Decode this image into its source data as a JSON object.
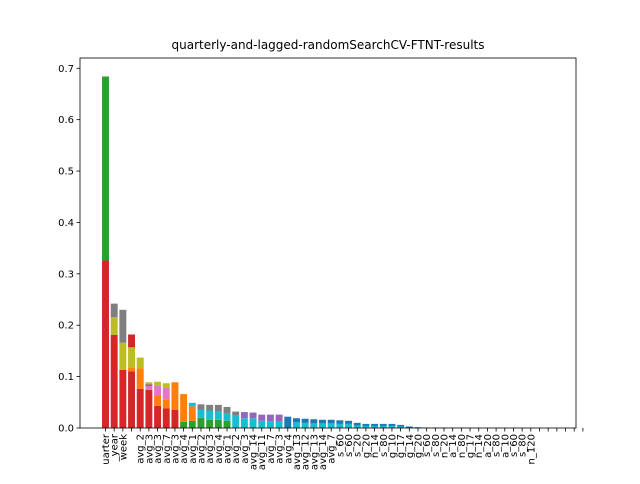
{
  "chart_data": {
    "type": "bar",
    "stacked": true,
    "title": "quarterly-and-lagged-randomSearchCV-FTNT-results",
    "xlabel": "",
    "ylabel": "",
    "ylim": [
      0,
      0.72
    ],
    "yticks": [
      0.0,
      0.1,
      0.2,
      0.3,
      0.4,
      0.5,
      0.6,
      0.7
    ],
    "ytick_labels": [
      "0.0",
      "0.1",
      "0.2",
      "0.3",
      "0.4",
      "0.5",
      "0.6",
      "0.7"
    ],
    "grid": false,
    "categories": [
      "uarter",
      "_year",
      "week",
      "",
      "avg_2",
      "avg_3",
      "avg_3",
      "avg_7",
      "avg_3",
      "avg_4",
      "avg_1",
      "avg_2",
      "avg_3",
      "avg_4",
      "avg_1",
      "avg_2",
      "avg_3",
      "avg_14",
      "avg_11",
      "avg_7",
      "avg_3",
      "avg_4",
      "avg_13",
      "avg_12",
      "avg_13",
      "avg_14",
      "avg_7",
      "s_60",
      "s_60",
      "s_20",
      "g_20",
      "n_14",
      "s_80",
      "g_10",
      "g_17",
      "g_14",
      "g_20",
      "s_60",
      "s_80",
      "n_20",
      "a_14",
      "n_80",
      "g_17",
      "n_14",
      "a_20",
      "s_80",
      "a_10",
      "s_60",
      "s_80",
      "n_120",
      "",
      "",
      "",
      "",
      "",
      ""
    ],
    "segments": [
      [
        {
          "c": "#d62728",
          "v": 0.326
        },
        {
          "c": "#2ca02c",
          "v": 0.358
        }
      ],
      [
        {
          "c": "#d62728",
          "v": 0.181
        },
        {
          "c": "#bcbd22",
          "v": 0.035
        },
        {
          "c": "#7f7f7f",
          "v": 0.026
        }
      ],
      [
        {
          "c": "#d62728",
          "v": 0.113
        },
        {
          "c": "#bcbd22",
          "v": 0.053
        },
        {
          "c": "#7f7f7f",
          "v": 0.064
        }
      ],
      [
        {
          "c": "#d62728",
          "v": 0.11
        },
        {
          "c": "#ff7f0e",
          "v": 0.008
        },
        {
          "c": "#bcbd22",
          "v": 0.039
        },
        {
          "c": "#d62728",
          "v": 0.025
        }
      ],
      [
        {
          "c": "#d62728",
          "v": 0.076
        },
        {
          "c": "#ff7f0e",
          "v": 0.04
        },
        {
          "c": "#bcbd22",
          "v": 0.021
        }
      ],
      [
        {
          "c": "#d62728",
          "v": 0.074
        },
        {
          "c": "#e377c2",
          "v": 0.008
        },
        {
          "c": "#8c564b",
          "v": 0.003
        },
        {
          "c": "#bcbd22",
          "v": 0.004
        }
      ],
      [
        {
          "c": "#d62728",
          "v": 0.043
        },
        {
          "c": "#ff7f0e",
          "v": 0.021
        },
        {
          "c": "#e377c2",
          "v": 0.018
        },
        {
          "c": "#bcbd22",
          "v": 0.008
        }
      ],
      [
        {
          "c": "#d62728",
          "v": 0.038
        },
        {
          "c": "#ff7f0e",
          "v": 0.018
        },
        {
          "c": "#e377c2",
          "v": 0.022
        },
        {
          "c": "#bcbd22",
          "v": 0.009
        }
      ],
      [
        {
          "c": "#d62728",
          "v": 0.035
        },
        {
          "c": "#ff7f0e",
          "v": 0.054
        }
      ],
      [
        {
          "c": "#2ca02c",
          "v": 0.012
        },
        {
          "c": "#ff7f0e",
          "v": 0.054
        }
      ],
      [
        {
          "c": "#2ca02c",
          "v": 0.014
        },
        {
          "c": "#ff7f0e",
          "v": 0.028
        },
        {
          "c": "#17becf",
          "v": 0.007
        }
      ],
      [
        {
          "c": "#2ca02c",
          "v": 0.02
        },
        {
          "c": "#17becf",
          "v": 0.016
        },
        {
          "c": "#7f7f7f",
          "v": 0.01
        }
      ],
      [
        {
          "c": "#2ca02c",
          "v": 0.016
        },
        {
          "c": "#17becf",
          "v": 0.018
        },
        {
          "c": "#7f7f7f",
          "v": 0.011
        }
      ],
      [
        {
          "c": "#2ca02c",
          "v": 0.016
        },
        {
          "c": "#17becf",
          "v": 0.017
        },
        {
          "c": "#7f7f7f",
          "v": 0.012
        }
      ],
      [
        {
          "c": "#2ca02c",
          "v": 0.014
        },
        {
          "c": "#17becf",
          "v": 0.014
        },
        {
          "c": "#7f7f7f",
          "v": 0.013
        }
      ],
      [
        {
          "c": "#17becf",
          "v": 0.024
        },
        {
          "c": "#7f7f7f",
          "v": 0.008
        }
      ],
      [
        {
          "c": "#17becf",
          "v": 0.019
        },
        {
          "c": "#9467bd",
          "v": 0.012
        }
      ],
      [
        {
          "c": "#17becf",
          "v": 0.019
        },
        {
          "c": "#9467bd",
          "v": 0.011
        }
      ],
      [
        {
          "c": "#17becf",
          "v": 0.014
        },
        {
          "c": "#9467bd",
          "v": 0.012
        }
      ],
      [
        {
          "c": "#17becf",
          "v": 0.013
        },
        {
          "c": "#9467bd",
          "v": 0.013
        }
      ],
      [
        {
          "c": "#17becf",
          "v": 0.012
        },
        {
          "c": "#9467bd",
          "v": 0.014
        }
      ],
      [
        {
          "c": "#1f77b4",
          "v": 0.022
        }
      ],
      [
        {
          "c": "#17becf",
          "v": 0.011
        },
        {
          "c": "#1f77b4",
          "v": 0.008
        }
      ],
      [
        {
          "c": "#17becf",
          "v": 0.01
        },
        {
          "c": "#1f77b4",
          "v": 0.008
        }
      ],
      [
        {
          "c": "#17becf",
          "v": 0.009
        },
        {
          "c": "#1f77b4",
          "v": 0.008
        }
      ],
      [
        {
          "c": "#17becf",
          "v": 0.009
        },
        {
          "c": "#1f77b4",
          "v": 0.007
        }
      ],
      [
        {
          "c": "#17becf",
          "v": 0.009
        },
        {
          "c": "#1f77b4",
          "v": 0.007
        }
      ],
      [
        {
          "c": "#17becf",
          "v": 0.008
        },
        {
          "c": "#1f77b4",
          "v": 0.007
        }
      ],
      [
        {
          "c": "#17becf",
          "v": 0.008
        },
        {
          "c": "#1f77b4",
          "v": 0.006
        }
      ],
      [
        {
          "c": "#17becf",
          "v": 0.005
        },
        {
          "c": "#1f77b4",
          "v": 0.005
        }
      ],
      [
        {
          "c": "#17becf",
          "v": 0.004
        },
        {
          "c": "#1f77b4",
          "v": 0.004
        }
      ],
      [
        {
          "c": "#17becf",
          "v": 0.004
        },
        {
          "c": "#1f77b4",
          "v": 0.004
        }
      ],
      [
        {
          "c": "#17becf",
          "v": 0.004
        },
        {
          "c": "#1f77b4",
          "v": 0.004
        }
      ],
      [
        {
          "c": "#17becf",
          "v": 0.004
        },
        {
          "c": "#1f77b4",
          "v": 0.004
        }
      ],
      [
        {
          "c": "#17becf",
          "v": 0.003
        },
        {
          "c": "#1f77b4",
          "v": 0.003
        }
      ],
      [
        {
          "c": "#1f77b4",
          "v": 0.003
        }
      ],
      [
        {
          "c": "#1f77b4",
          "v": 0.0015
        }
      ],
      [
        {
          "c": "#1f77b4",
          "v": 0.001
        }
      ],
      [
        {
          "c": "#1f77b4",
          "v": 0.001
        }
      ],
      [
        {
          "c": "#1f77b4",
          "v": 0.0008
        }
      ],
      [
        {
          "c": "#1f77b4",
          "v": 0.0006
        }
      ],
      [
        {
          "c": "#1f77b4",
          "v": 0.0005
        }
      ],
      [
        {
          "c": "#1f77b4",
          "v": 0.0004
        }
      ],
      [
        {
          "c": "#1f77b4",
          "v": 0.0004
        }
      ],
      [
        {
          "c": "#1f77b4",
          "v": 0.0003
        }
      ],
      [
        {
          "c": "#1f77b4",
          "v": 0.0003
        }
      ],
      [
        {
          "c": "#1f77b4",
          "v": 0.0002
        }
      ],
      [
        {
          "c": "#1f77b4",
          "v": 0.0002
        }
      ],
      [
        {
          "c": "#1f77b4",
          "v": 0.0002
        }
      ],
      [
        {
          "c": "#1f77b4",
          "v": 0.0001
        }
      ],
      [
        {
          "c": "#1f77b4",
          "v": 0.0001
        }
      ],
      [
        {
          "c": "#1f77b4",
          "v": 0.0001
        }
      ],
      [
        {
          "c": "#1f77b4",
          "v": 0.0001
        }
      ],
      [
        {
          "c": "#1f77b4",
          "v": 0.0001
        }
      ],
      [
        {
          "c": "#1f77b4",
          "v": 0.0001
        }
      ],
      [
        {
          "c": "#1f77b4",
          "v": 0.0001
        }
      ]
    ]
  }
}
